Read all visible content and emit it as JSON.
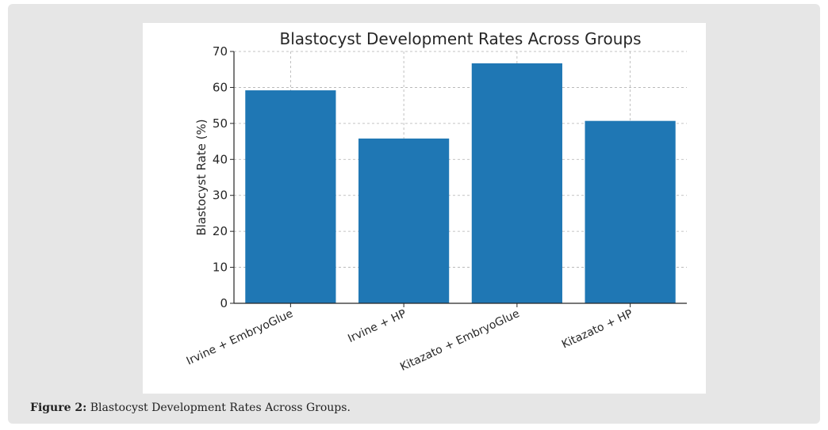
{
  "figure": {
    "caption_label": "Figure 2:",
    "caption_text": " Blastocyst Development Rates Across Groups."
  },
  "chart_data": {
    "type": "bar",
    "title": "Blastocyst Development Rates Across Groups",
    "xlabel": "",
    "ylabel": "Blastocyst Rate (%)",
    "categories": [
      "Irvine + EmbryoGlue",
      "Irvine + HP",
      "Kitazato + EmbryoGlue",
      "Kitazato + HP"
    ],
    "values": [
      59.2,
      45.8,
      66.7,
      50.7
    ],
    "ylim": [
      0,
      70
    ],
    "yticks": [
      0,
      10,
      20,
      30,
      40,
      50,
      60,
      70
    ],
    "grid": true,
    "bar_color": "#1f77b4"
  }
}
